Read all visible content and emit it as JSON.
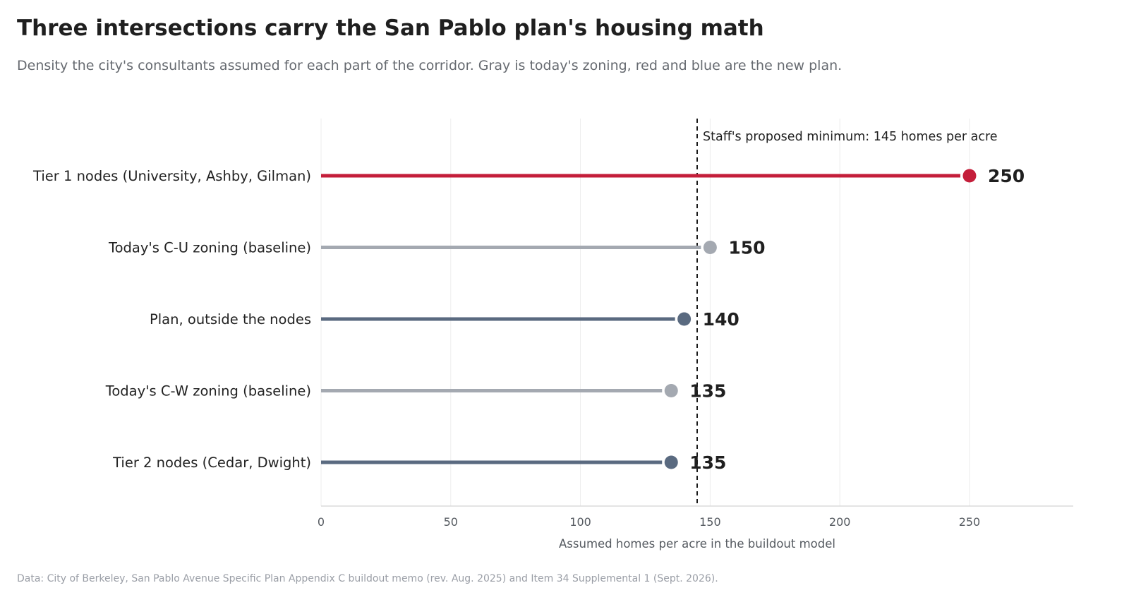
{
  "header": {
    "title": "Three intersections carry the San Pablo plan's housing math",
    "subtitle": "Density the city's consultants assumed for each part of the corridor. Gray is today's zoning, red and blue are the new plan."
  },
  "footer": {
    "source": "Data: City of Berkeley, San Pablo Avenue Specific Plan Appendix C buildout memo (rev. Aug. 2025) and Item 34 Supplemental 1 (Sept. 2026)."
  },
  "chart_data": {
    "type": "lollipop",
    "orientation": "horizontal",
    "xlabel": "Assumed homes per acre in the buildout model",
    "xlim": [
      0,
      290
    ],
    "xticks": [
      0,
      50,
      100,
      150,
      200,
      250
    ],
    "grid": "vertical",
    "categories": [
      "Tier 1 nodes (University, Ashby, Gilman)",
      "Today's C-U zoning (baseline)",
      "Plan, outside the nodes",
      "Today's C-W zoning (baseline)",
      "Tier 2 nodes (Cedar, Dwight)"
    ],
    "values": [
      250,
      150,
      140,
      135,
      135
    ],
    "colors": [
      "#c41e3a",
      "#a4a9b1",
      "#5a6a80",
      "#a4a9b1",
      "#5a6a80"
    ],
    "reference_line": {
      "value": 145,
      "label": "Staff's proposed minimum: 145 homes per acre",
      "style": "dashed"
    }
  }
}
